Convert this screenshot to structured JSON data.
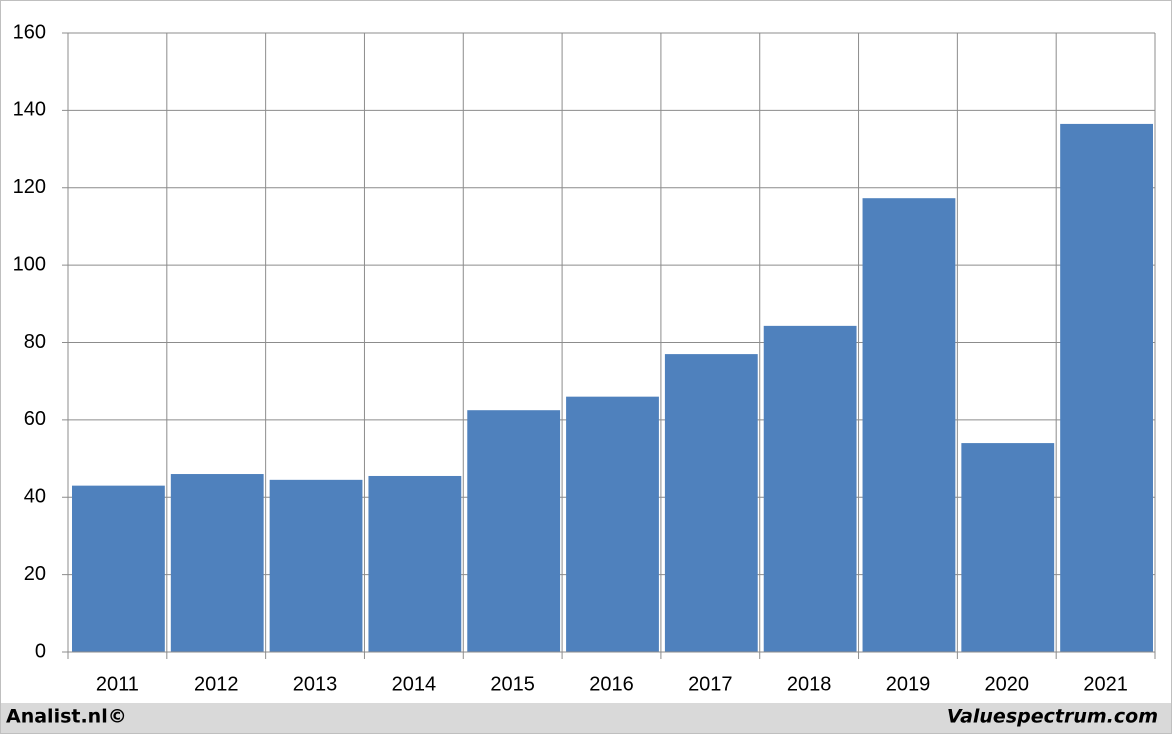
{
  "chart_data": {
    "type": "bar",
    "categories": [
      "2011",
      "2012",
      "2013",
      "2014",
      "2015",
      "2016",
      "2017",
      "2018",
      "2019",
      "2020",
      "2021"
    ],
    "values": [
      43,
      46,
      44.5,
      45.5,
      62.5,
      66,
      77,
      84.3,
      117.3,
      54,
      136.5
    ],
    "color": "#4f81bd",
    "ylim": [
      0,
      160
    ],
    "yticks": [
      0,
      20,
      40,
      60,
      80,
      100,
      120,
      140,
      160
    ],
    "grid": true
  },
  "footer": {
    "left": "Analist.nl©",
    "right": "Valuespectrum.com"
  }
}
